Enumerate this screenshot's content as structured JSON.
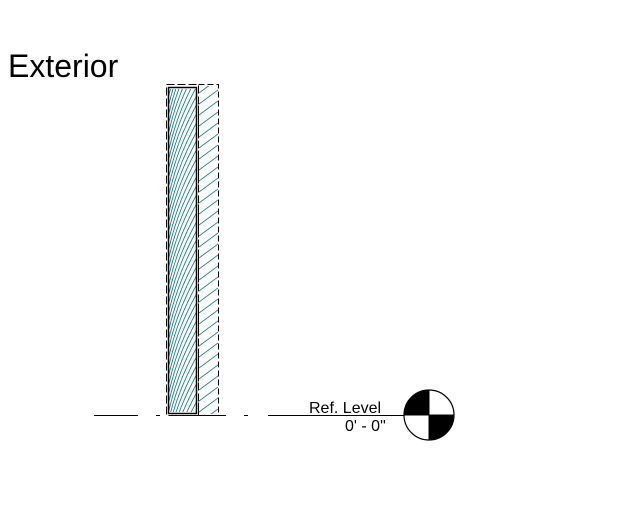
{
  "view": {
    "side_label": "Exterior"
  },
  "level_marker": {
    "name": "Ref. Level",
    "elevation": "0' - 0\""
  },
  "colors": {
    "hatch": "#1a7f8e",
    "line": "#000000",
    "background": "#ffffff"
  }
}
